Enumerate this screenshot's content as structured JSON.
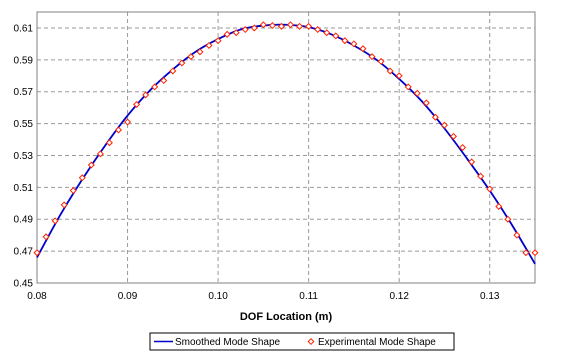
{
  "chart_data": {
    "type": "line",
    "title": "",
    "xlabel": "DOF Location (m)",
    "ylabel": "",
    "xlim": [
      0.08,
      0.135
    ],
    "ylim": [
      0.45,
      0.62
    ],
    "x_ticks": [
      "0.08",
      "0.09",
      "0.10",
      "0.11",
      "0.12",
      "0.13"
    ],
    "x_tick_values": [
      0.08,
      0.09,
      0.1,
      0.11,
      0.12,
      0.13
    ],
    "y_ticks": [
      "0.45",
      "0.47",
      "0.49",
      "0.51",
      "0.53",
      "0.55",
      "0.57",
      "0.59",
      "0.61"
    ],
    "y_tick_values": [
      0.45,
      0.47,
      0.49,
      0.51,
      0.53,
      0.55,
      0.57,
      0.59,
      0.61
    ],
    "grid": "dashed",
    "legend_position": "bottom",
    "series": [
      {
        "name": "Smoothed Mode Shape",
        "style": "line",
        "color": "#0000cc",
        "x": [
          0.08,
          0.0825,
          0.085,
          0.0875,
          0.09,
          0.0925,
          0.095,
          0.0975,
          0.1,
          0.1025,
          0.105,
          0.1075,
          0.11,
          0.1125,
          0.115,
          0.1175,
          0.12,
          0.1225,
          0.125,
          0.1275,
          0.13,
          0.1325,
          0.135
        ],
        "y": [
          0.466,
          0.492,
          0.515,
          0.536,
          0.555,
          0.571,
          0.584,
          0.595,
          0.603,
          0.609,
          0.6115,
          0.612,
          0.6105,
          0.606,
          0.599,
          0.59,
          0.578,
          0.564,
          0.547,
          0.528,
          0.508,
          0.486,
          0.462
        ]
      },
      {
        "name": "Experimental Mode Shape",
        "style": "marker",
        "marker": "diamond",
        "color": "#ff2200",
        "x": [
          0.08,
          0.081,
          0.082,
          0.083,
          0.084,
          0.085,
          0.086,
          0.087,
          0.088,
          0.089,
          0.09,
          0.091,
          0.092,
          0.093,
          0.094,
          0.095,
          0.096,
          0.097,
          0.098,
          0.099,
          0.1,
          0.101,
          0.102,
          0.103,
          0.104,
          0.105,
          0.106,
          0.107,
          0.108,
          0.109,
          0.11,
          0.111,
          0.112,
          0.113,
          0.114,
          0.115,
          0.116,
          0.117,
          0.118,
          0.119,
          0.12,
          0.121,
          0.122,
          0.123,
          0.124,
          0.125,
          0.126,
          0.127,
          0.128,
          0.129,
          0.13,
          0.131,
          0.132,
          0.133,
          0.134,
          0.135
        ],
        "y": [
          0.469,
          0.479,
          0.489,
          0.499,
          0.508,
          0.516,
          0.524,
          0.531,
          0.538,
          0.546,
          0.551,
          0.562,
          0.568,
          0.573,
          0.577,
          0.583,
          0.588,
          0.592,
          0.595,
          0.599,
          0.602,
          0.606,
          0.607,
          0.609,
          0.61,
          0.612,
          0.6115,
          0.611,
          0.612,
          0.611,
          0.611,
          0.609,
          0.607,
          0.605,
          0.602,
          0.6,
          0.597,
          0.592,
          0.589,
          0.583,
          0.58,
          0.573,
          0.569,
          0.563,
          0.554,
          0.549,
          0.542,
          0.535,
          0.526,
          0.517,
          0.509,
          0.498,
          0.49,
          0.48,
          0.469,
          0.469
        ]
      }
    ]
  }
}
